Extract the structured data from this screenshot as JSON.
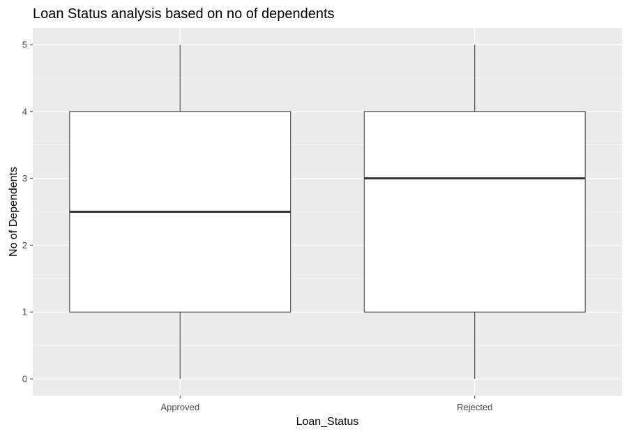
{
  "chart_data": {
    "type": "box",
    "title": "Loan Status analysis based on no of dependents",
    "xlabel": "Loan_Status",
    "ylabel": "No of Dependents",
    "categories": [
      "Approved",
      "Rejected"
    ],
    "boxes": [
      {
        "category": "Approved",
        "min": 0,
        "q1": 1,
        "median": 2.5,
        "q3": 4,
        "max": 5
      },
      {
        "category": "Rejected",
        "min": 0,
        "q1": 1,
        "median": 3,
        "q3": 4,
        "max": 5
      }
    ],
    "yticks": [
      0,
      1,
      2,
      3,
      4,
      5
    ],
    "ylim": [
      -0.25,
      5.25
    ],
    "grid": true,
    "legend": "none",
    "colors": {
      "panel_background": "#ebebeb",
      "grid": "#ffffff",
      "box_fill": "#ffffff",
      "box_stroke": "#333333",
      "tick_text": "#4d4d4d"
    }
  }
}
